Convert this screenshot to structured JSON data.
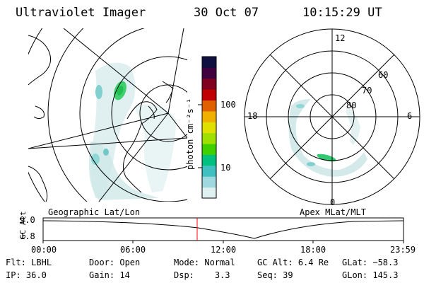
{
  "header": {
    "instrument": "Ultraviolet Imager",
    "date": "30 Oct 07",
    "time": "10:15:29 UT"
  },
  "geo_map": {
    "label": "Geographic Lat/Lon"
  },
  "colorbar": {
    "unit_label": "photon cm⁻²s⁻¹",
    "tick_labels": [
      "100",
      "10"
    ],
    "colors": [
      "#101040",
      "#400040",
      "#800020",
      "#c00000",
      "#e06000",
      "#f0b000",
      "#e0e000",
      "#a0e000",
      "#40d000",
      "#00c080",
      "#40c0c0",
      "#a0d8e0",
      "#e0f0f0"
    ]
  },
  "polar_plot": {
    "label": "Apex MLat/MLT",
    "mlt_labels": [
      "12",
      "18",
      "6",
      "0"
    ],
    "lat_labels": [
      "60",
      "70",
      "80"
    ]
  },
  "altitude_panel": {
    "ylabel": "GC Alt",
    "y_ticks": [
      "9.0",
      "1.8"
    ],
    "x_ticks": [
      "00:00",
      "06:00",
      "12:00",
      "18:00",
      "23:59"
    ],
    "marker_color": "#ff0000"
  },
  "status": {
    "row1": [
      {
        "label": "Flt:",
        "value": "LBHL"
      },
      {
        "label": "Door:",
        "value": "Open"
      },
      {
        "label": "Mode:",
        "value": "Normal"
      },
      {
        "label": "GC Alt:",
        "value": "6.4 Re"
      },
      {
        "label": "GLat:",
        "value": "−58.3"
      }
    ],
    "row2": [
      {
        "label": "IP:",
        "value": "36.0"
      },
      {
        "label": "Gain:",
        "value": "14"
      },
      {
        "label": "Dsp:",
        "value": "3.3"
      },
      {
        "label": "Seq:",
        "value": "39"
      },
      {
        "label": "GLon:",
        "value": "145.3"
      }
    ]
  }
}
